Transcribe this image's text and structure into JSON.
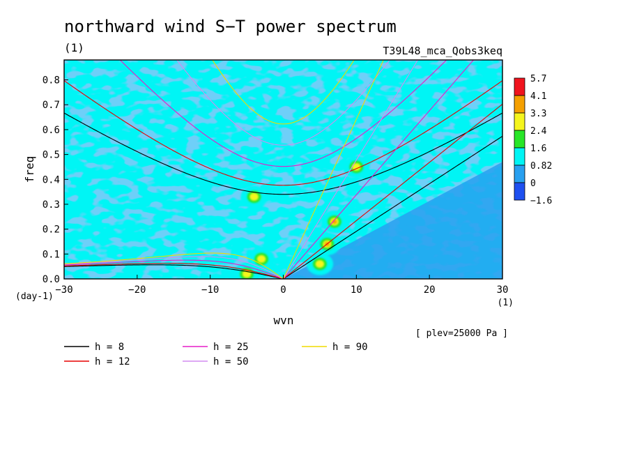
{
  "chart_data": {
    "type": "heatmap",
    "title": "northward wind S−T power spectrum",
    "subtitle_left": "(1)",
    "subtitle_right": "T39L48_mca_Qobs3keq",
    "xlabel": "wvn",
    "ylabel": "freq",
    "x_unit_label": "(1)",
    "y_unit_label": "(day-1)",
    "footnote": "[ plev=25000 Pa ]",
    "xlim": [
      -30,
      30
    ],
    "ylim": [
      0,
      0.88
    ],
    "x_ticks": [
      "−30",
      "−20",
      "−10",
      "0",
      "10",
      "20",
      "30"
    ],
    "x_tick_values": [
      -30,
      -20,
      -10,
      0,
      10,
      20,
      30
    ],
    "y_ticks": [
      "0.0",
      "0.1",
      "0.2",
      "0.3",
      "0.4",
      "0.5",
      "0.6",
      "0.7",
      "0.8"
    ],
    "y_tick_values": [
      0.0,
      0.1,
      0.2,
      0.3,
      0.4,
      0.5,
      0.6,
      0.7,
      0.8
    ],
    "colorbar": {
      "levels": [
        "5.7",
        "4.1",
        "3.3",
        "2.4",
        "1.6",
        "0.82",
        "0",
        "−1.6"
      ],
      "colors": [
        "#f0141e",
        "#f5a000",
        "#f5f51e",
        "#28e628",
        "#00f5f5",
        "#28a0f0",
        "#1e50f0"
      ]
    },
    "background_fill_color": "#00f5f5",
    "low_fill_color": "#28a0f0",
    "high_regions": [
      {
        "level": 2,
        "wvn": -5,
        "freq": 0.02
      },
      {
        "level": 2,
        "wvn": -3,
        "freq": 0.08
      },
      {
        "level": 2,
        "wvn": 5,
        "freq": 0.06
      },
      {
        "level": 3,
        "wvn": 6,
        "freq": 0.14
      },
      {
        "level": 3,
        "wvn": 7,
        "freq": 0.23
      },
      {
        "level": 2,
        "wvn": -4,
        "freq": 0.33
      },
      {
        "level": 2,
        "wvn": 10,
        "freq": 0.45
      }
    ],
    "equivalent_depths": [
      {
        "label": "h =  8",
        "h": 8,
        "color": "#000000"
      },
      {
        "label": "h = 12",
        "h": 12,
        "color": "#e60000"
      },
      {
        "label": "h = 25",
        "h": 25,
        "color": "#e61ec8"
      },
      {
        "label": "h = 50",
        "h": 50,
        "color": "#d28cf0"
      },
      {
        "label": "h = 90",
        "h": 90,
        "color": "#f0dc00"
      }
    ],
    "grid": false,
    "legend_position": "bottom-left"
  }
}
